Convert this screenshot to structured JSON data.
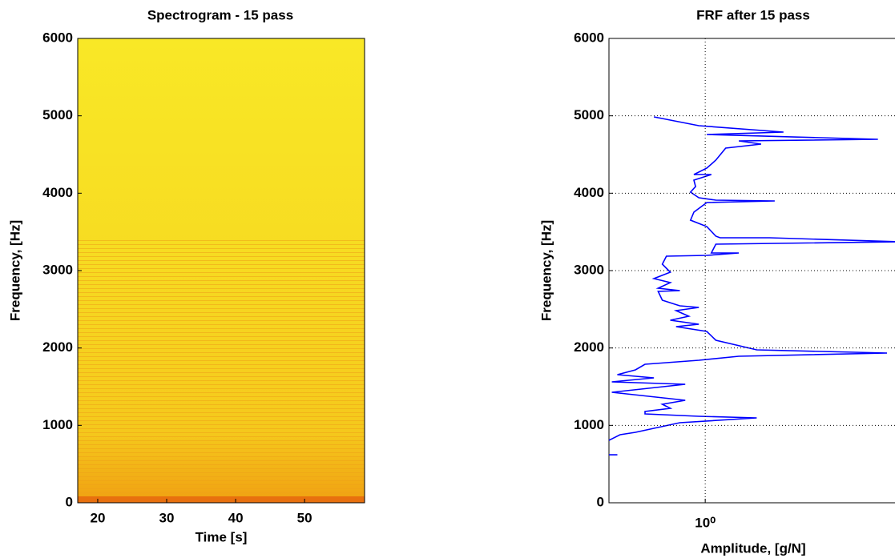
{
  "chart_data": [
    {
      "type": "heatmap",
      "title": "Spectrogram - 15 pass",
      "xlabel": "Time [s]",
      "ylabel": "Frequency, [Hz]",
      "xlim": [
        17.1,
        58.7
      ],
      "xticks": [
        20,
        30,
        40,
        50
      ],
      "ylim": [
        0,
        6000
      ],
      "yticks": [
        0,
        1000,
        2000,
        3000,
        4000,
        5000,
        6000
      ]
    },
    {
      "type": "line",
      "title": "FRF after 15 pass",
      "xlabel": "Amplitude, [g/N]",
      "ylabel": "Frequency, [Hz]",
      "xscale": "log",
      "xlim": [
        0.54,
        4.2
      ],
      "xticks": [
        {
          "value": 1,
          "label": "10⁰"
        }
      ],
      "ylim": [
        0,
        6000
      ],
      "yticks": [
        0,
        1000,
        2000,
        3000,
        4000,
        5000,
        6000
      ],
      "grid": true,
      "series": [
        {
          "color": "#0000ff",
          "x": [
            0.72,
            0.96,
            1.65,
            1.01,
            3.02,
            1.24,
            1.43,
            1.14,
            1.07,
            1.01,
            0.93,
            1.04,
            0.93,
            0.94,
            0.91,
            0.96,
            1.07,
            1.56,
            1.01,
            0.93,
            0.91,
            1.01,
            1.07,
            1.1,
            1.51,
            3.45,
            1.07,
            1.04,
            1.24,
            1.01,
            0.78,
            0.76,
            0.8,
            0.72,
            0.8,
            0.74,
            0.85,
            0.74,
            0.76,
            0.85,
            0.96,
            0.83,
            0.9,
            0.8,
            0.96,
            0.83,
            1.01,
            1.07,
            1.39,
            3.2,
            1.24,
            0.96,
            0.68,
            0.64,
            0.57,
            0.72,
            0.55,
            0.88,
            0.55,
            0.88,
            0.76,
            0.8,
            0.68,
            0.68,
            0.96,
            1.39,
            0.85,
            0.72,
            0.64,
            0.58,
            0.54,
            null,
            0.54,
            0.57
          ],
          "y": [
            4986,
            4872,
            4790,
            4759,
            4697,
            4676,
            4634,
            4583,
            4428,
            4324,
            4241,
            4241,
            4169,
            4086,
            4014,
            3941,
            3910,
            3900,
            3879,
            3755,
            3652,
            3569,
            3445,
            3424,
            3424,
            3372,
            3341,
            3228,
            3228,
            3197,
            3186,
            3083,
            2979,
            2897,
            2845,
            2772,
            2741,
            2731,
            2617,
            2545,
            2524,
            2483,
            2410,
            2359,
            2307,
            2276,
            2214,
            2100,
            1976,
            1934,
            1893,
            1841,
            1790,
            1717,
            1655,
            1614,
            1562,
            1531,
            1428,
            1324,
            1272,
            1221,
            1179,
            1148,
            1117,
            1097,
            1035,
            962,
            910,
            879,
            807,
            null,
            620,
            620
          ]
        }
      ]
    }
  ]
}
